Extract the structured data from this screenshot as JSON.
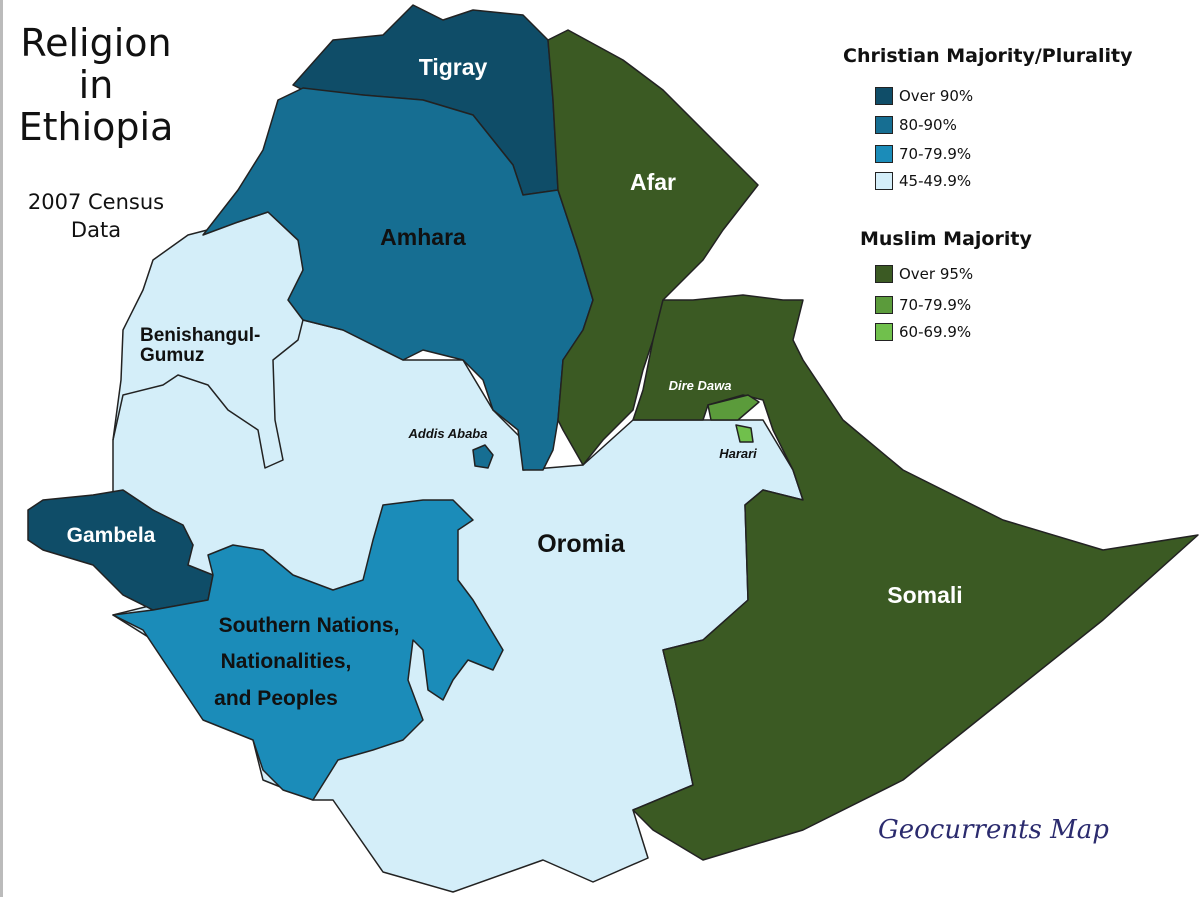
{
  "title": "Religion in Ethiopia",
  "title_lines": [
    "Religion",
    "in",
    "Ethiopia"
  ],
  "subtitle_lines": [
    "2007 Census",
    "Data"
  ],
  "legend": {
    "christian": {
      "heading": "Christian Majority/Plurality",
      "items": [
        {
          "label": "Over 90%",
          "color": "#0f4d68"
        },
        {
          "label": "80-90%",
          "color": "#166e92"
        },
        {
          "label": "70-79.9%",
          "color": "#1b8cb9"
        },
        {
          "label": "45-49.9%",
          "color": "#d4eef9"
        }
      ]
    },
    "muslim": {
      "heading": "Muslim Majority",
      "items": [
        {
          "label": "Over 95%",
          "color": "#3b5a23"
        },
        {
          "label": "70-79.9%",
          "color": "#5b9b3b"
        },
        {
          "label": "60-69.9%",
          "color": "#70c04c"
        }
      ]
    }
  },
  "regions": {
    "tigray": {
      "name": "Tigray",
      "category": "Over 90%"
    },
    "amhara": {
      "name": "Amhara",
      "category": "80-90%"
    },
    "afar": {
      "name": "Afar",
      "category": "Over 95%"
    },
    "benishangul": {
      "name_lines": [
        "Benishangul-",
        "Gumuz"
      ],
      "category": "45-49.9%"
    },
    "addis": {
      "name": "Addis Ababa",
      "category": "80-90%"
    },
    "dire_dawa": {
      "name": "Dire Dawa",
      "category": "70-79.9%"
    },
    "harari": {
      "name": "Harari",
      "category": "60-69.9%"
    },
    "gambela": {
      "name": "Gambela",
      "category": "Over 90%"
    },
    "oromia": {
      "name": "Oromia",
      "category": "45-49.9%"
    },
    "somali": {
      "name": "Somali",
      "category": "Over 95%"
    },
    "snnp": {
      "name_lines": [
        "Southern Nations,",
        "Nationalities,",
        "and Peoples"
      ],
      "category": "70-79.9%"
    }
  },
  "credit": "Geocurrents Map"
}
